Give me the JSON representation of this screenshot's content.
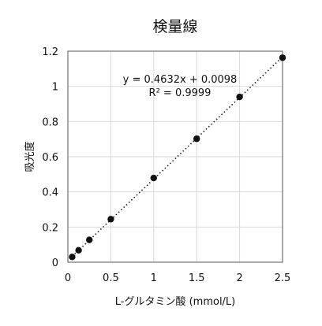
{
  "chart_data": {
    "type": "scatter",
    "title": "検量線",
    "xlabel": "L-グルタミン酸 (mmol/L)",
    "ylabel": "吸光度",
    "xlim": [
      0,
      2.5
    ],
    "ylim": [
      0,
      1.2
    ],
    "x_ticks": [
      "0",
      "0.5",
      "1",
      "1.5",
      "2",
      "2.5"
    ],
    "y_ticks": [
      "0",
      "0.2",
      "0.4",
      "0.6",
      "0.8",
      "1",
      "1.2"
    ],
    "grid": true,
    "legend": "none",
    "series": [
      {
        "x": [
          0.05,
          0.125,
          0.25,
          0.5,
          1.0,
          1.5,
          2.0,
          2.5
        ],
        "y": [
          0.03,
          0.068,
          0.127,
          0.245,
          0.479,
          0.702,
          0.94,
          1.163
        ],
        "marker_color": "#111111"
      }
    ],
    "trendline": {
      "slope": 0.4632,
      "intercept": 0.0098,
      "style": "dotted",
      "equation_label": "y = 0.4632x + 0.0098",
      "r2_label": "R² = 0.9999"
    }
  }
}
